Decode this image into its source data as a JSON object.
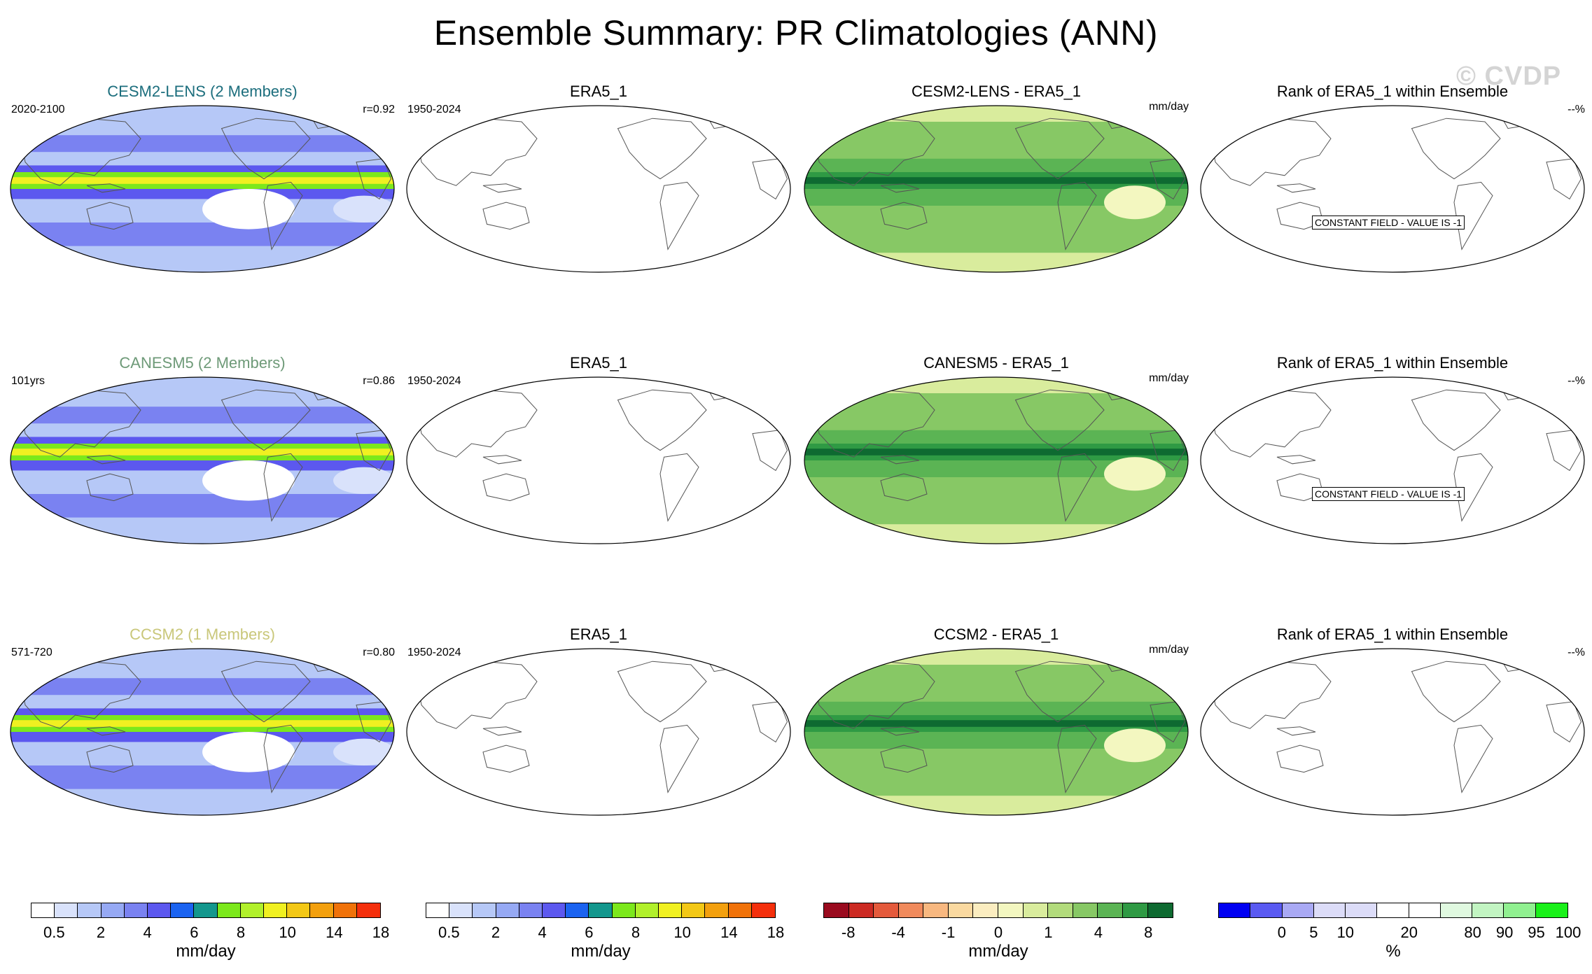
{
  "title": "Ensemble Summary: PR Climatologies (ANN)",
  "watermark": "© CVDP",
  "chart_data": {
    "type": "heatmap",
    "description_variable": "PR",
    "rows": [
      {
        "model": {
          "title": "CESM2-LENS (2 Members)",
          "title_color": "#1c6e7d",
          "period": "2020-2100",
          "r": "r=0.92"
        },
        "obs": {
          "title": "ERA5_1",
          "period": "1950-2024"
        },
        "diff": {
          "title": "CESM2-LENS - ERA5_1",
          "units": "mm/day"
        },
        "rank": {
          "title": "Rank of ERA5_1 within Ensemble",
          "value": "--%",
          "constant_label": "CONSTANT FIELD - VALUE IS -1"
        }
      },
      {
        "model": {
          "title": "CANESM5 (2 Members)",
          "title_color": "#6e9a78",
          "period": "101yrs",
          "r": "r=0.86"
        },
        "obs": {
          "title": "ERA5_1",
          "period": "1950-2024"
        },
        "diff": {
          "title": "CANESM5 - ERA5_1",
          "units": "mm/day"
        },
        "rank": {
          "title": "Rank of ERA5_1 within Ensemble",
          "value": "--%",
          "constant_label": "CONSTANT FIELD - VALUE IS -1"
        }
      },
      {
        "model": {
          "title": "CCSM2 (1 Members)",
          "title_color": "#c9c77a",
          "period": "571-720",
          "r": "r=0.80"
        },
        "obs": {
          "title": "ERA5_1",
          "period": "1950-2024"
        },
        "diff": {
          "title": "CCSM2 - ERA5_1",
          "units": "mm/day"
        },
        "rank": {
          "title": "Rank of ERA5_1 within Ensemble",
          "value": "--%",
          "constant_label": ""
        }
      }
    ],
    "colorbars": [
      {
        "units": "mm/day",
        "colors": [
          "#ffffff",
          "#d9e2fb",
          "#b6c8f7",
          "#96a9f4",
          "#7a82f1",
          "#5c58ef",
          "#1b63f0",
          "#13978d",
          "#7ce81c",
          "#b1f02b",
          "#f0f021",
          "#f3c816",
          "#f3a00e",
          "#f07209",
          "#f42f0c"
        ],
        "labels": [
          "0.5",
          "2",
          "4",
          "6",
          "8",
          "10",
          "14",
          "18"
        ]
      },
      {
        "units": "mm/day",
        "colors": [
          "#ffffff",
          "#d9e2fb",
          "#b6c8f7",
          "#96a9f4",
          "#7a82f1",
          "#5c58ef",
          "#1b63f0",
          "#13978d",
          "#7ce81c",
          "#b1f02b",
          "#f0f021",
          "#f3c816",
          "#f3a00e",
          "#f07209",
          "#f42f0c"
        ],
        "labels": [
          "0.5",
          "2",
          "4",
          "6",
          "8",
          "10",
          "14",
          "18"
        ]
      },
      {
        "units": "mm/day",
        "colors": [
          "#9a0b1f",
          "#cc2a23",
          "#e45a3c",
          "#f08a5c",
          "#f8b880",
          "#fad9a0",
          "#fbedc0",
          "#f3f7c0",
          "#d9ec9d",
          "#b2db7c",
          "#87c865",
          "#5bb454",
          "#2f9a44",
          "#0e6a31"
        ],
        "labels": [
          "-8",
          "-4",
          "-1",
          "0",
          "1",
          "4",
          "8"
        ]
      },
      {
        "units": "%",
        "colors": [
          "#0000f2",
          "#5a5af2",
          "#a9a9f4",
          "#dcdcf8",
          "#dcdcf8",
          "#ffffff",
          "#ffffff",
          "#e0f9e0",
          "#c2f5c2",
          "#90f090",
          "#1af01a"
        ],
        "labels": [
          "0",
          "5",
          "10",
          "20",
          "80",
          "90",
          "95",
          "100"
        ]
      }
    ]
  }
}
